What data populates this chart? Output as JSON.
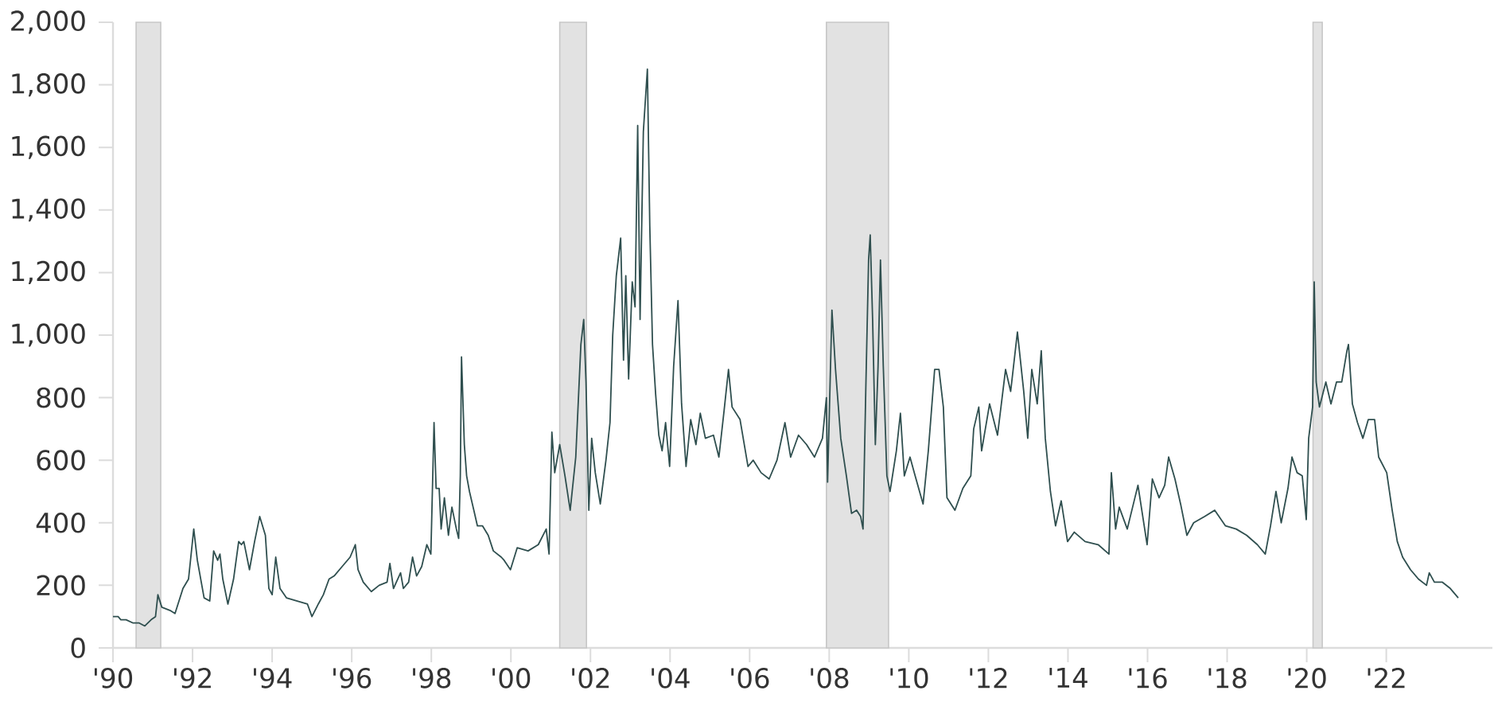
{
  "chart_data": {
    "type": "line",
    "color": "#2f4f4f",
    "marker": "none",
    "line_style": "solid",
    "xlim": [
      "1990-01-01",
      "2024-09-01"
    ],
    "xticks": [
      {
        "value": "1990-01-01",
        "label": "'90"
      },
      {
        "value": "1992-01-01",
        "label": "'92"
      },
      {
        "value": "1994-01-01",
        "label": "'94"
      },
      {
        "value": "1996-01-01",
        "label": "'96"
      },
      {
        "value": "1998-01-01",
        "label": "'98"
      },
      {
        "value": "2000-01-01",
        "label": "'00"
      },
      {
        "value": "2002-01-01",
        "label": "'02"
      },
      {
        "value": "2004-01-01",
        "label": "'04"
      },
      {
        "value": "2006-01-01",
        "label": "'06"
      },
      {
        "value": "2008-01-01",
        "label": "'08"
      },
      {
        "value": "2010-01-01",
        "label": "'10"
      },
      {
        "value": "2012-01-01",
        "label": "'12"
      },
      {
        "value": "2014-01-01",
        "label": "'14"
      },
      {
        "value": "2016-01-01",
        "label": "'16"
      },
      {
        "value": "2018-01-01",
        "label": "'18"
      },
      {
        "value": "2020-01-01",
        "label": "'20"
      },
      {
        "value": "2022-01-01",
        "label": "'22"
      }
    ],
    "ylim": [
      0,
      2000
    ],
    "yticks": [
      0,
      200,
      400,
      600,
      800,
      {
        "value": 1000,
        "label": "1,000"
      },
      {
        "value": 1200,
        "label": "1,200"
      },
      {
        "value": 1400,
        "label": "1,400"
      },
      {
        "value": 1600,
        "label": "1,600"
      },
      {
        "value": 1800,
        "label": "1,800"
      },
      {
        "value": 2000,
        "label": "2,000"
      }
    ],
    "bands": [
      {
        "axis": "x",
        "from": "1990-08-01",
        "to": "1991-03-15",
        "color": "#e2e2e2"
      },
      {
        "axis": "x",
        "from": "2001-03-25",
        "to": "2001-11-25",
        "color": "#e2e2e2"
      },
      {
        "axis": "x",
        "from": "2007-12-06",
        "to": "2009-06-29",
        "color": "#e2e2e2"
      },
      {
        "axis": "x",
        "from": "2020-02-28",
        "to": "2020-05-23",
        "color": "#e2e2e2"
      }
    ],
    "x": [
      "1990-01-01",
      "1990-02-17",
      "1990-03-14",
      "1990-05-01",
      "1990-07-01",
      "1990-08-26",
      "1990-10-20",
      "1990-12-17",
      "1991-01-26",
      "1991-02-17",
      "1991-03-25",
      "1991-06-07",
      "1991-07-24",
      "1991-10-05",
      "1991-11-25",
      "1992-01-12",
      "1992-02-14",
      "1992-04-16",
      "1992-06-07",
      "1992-07-13",
      "1992-08-19",
      "1992-09-09",
      "1992-10-05",
      "1992-11-21",
      "1993-01-12",
      "1993-02-28",
      "1993-03-25",
      "1993-04-16",
      "1993-06-07",
      "1993-07-24",
      "1993-09-09",
      "1993-10-31",
      "1993-12-02",
      "1994-01-01",
      "1994-02-03",
      "1994-03-14",
      "1994-05-12",
      "1994-08-19",
      "1994-11-21",
      "1995-01-01",
      "1995-02-28",
      "1995-04-16",
      "1995-06-07",
      "1995-07-24",
      "1995-10-05",
      "1995-12-17",
      "1996-02-03",
      "1996-02-28",
      "1996-04-16",
      "1996-06-29",
      "1996-09-09",
      "1996-11-21",
      "1996-12-17",
      "1997-01-19",
      "1997-03-25",
      "1997-04-20",
      "1997-06-07",
      "1997-07-13",
      "1997-08-19",
      "1997-10-05",
      "1997-11-21",
      "1997-12-28",
      "1998-01-26",
      "1998-02-14",
      "1998-03-14",
      "1998-04-01",
      "1998-05-01",
      "1998-06-07",
      "1998-07-09",
      "1998-08-19",
      "1998-09-09",
      "1998-09-24",
      "1998-10-05",
      "1998-10-31",
      "1998-11-21",
      "1998-12-17",
      "1999-01-26",
      "1999-02-28",
      "1999-04-16",
      "1999-06-07",
      "1999-07-24",
      "1999-10-05",
      "1999-10-31",
      "1999-12-28",
      "2000-02-28",
      "2000-06-07",
      "2000-09-09",
      "2000-11-21",
      "2000-12-17",
      "2001-01-12",
      "2001-02-07",
      "2001-03-25",
      "2001-05-12",
      "2001-06-29",
      "2001-08-19",
      "2001-10-05",
      "2001-10-31",
      "2001-11-21",
      "2001-12-17",
      "2002-01-12",
      "2002-02-14",
      "2002-04-01",
      "2002-05-23",
      "2002-06-29",
      "2002-07-24",
      "2002-08-26",
      "2002-10-05",
      "2002-10-31",
      "2002-11-21",
      "2002-12-17",
      "2003-01-19",
      "2003-02-14",
      "2003-03-10",
      "2003-04-01",
      "2003-05-01",
      "2003-06-07",
      "2003-06-29",
      "2003-07-24",
      "2003-08-22",
      "2003-09-20",
      "2003-10-20",
      "2003-11-21",
      "2003-12-28",
      "2004-02-03",
      "2004-03-14",
      "2004-04-16",
      "2004-05-27",
      "2004-07-09",
      "2004-08-26",
      "2004-10-05",
      "2004-11-21",
      "2005-02-03",
      "2005-03-25",
      "2005-05-12",
      "2005-06-21",
      "2005-07-24",
      "2005-10-05",
      "2005-12-17",
      "2006-02-03",
      "2006-04-16",
      "2006-06-29",
      "2006-09-09",
      "2006-11-21",
      "2007-01-12",
      "2007-03-25",
      "2007-06-07",
      "2007-08-19",
      "2007-10-31",
      "2007-12-06",
      "2007-12-17",
      "2008-01-26",
      "2008-02-28",
      "2008-04-16",
      "2008-06-07",
      "2008-07-24",
      "2008-09-09",
      "2008-10-16",
      "2008-11-07",
      "2008-12-02",
      "2008-12-28",
      "2009-01-12",
      "2009-02-03",
      "2009-02-28",
      "2009-03-25",
      "2009-04-16",
      "2009-05-12",
      "2009-06-14",
      "2009-07-13",
      "2009-09-09",
      "2009-10-16",
      "2009-11-21",
      "2010-01-12",
      "2010-02-28",
      "2010-05-12",
      "2010-06-29",
      "2010-08-26",
      "2010-10-05",
      "2010-11-14",
      "2010-12-17",
      "2011-02-28",
      "2011-05-12",
      "2011-07-24",
      "2011-08-19",
      "2011-10-05",
      "2011-10-31",
      "2012-01-12",
      "2012-03-25",
      "2012-06-07",
      "2012-07-24",
      "2012-09-24",
      "2012-11-21",
      "2012-12-28",
      "2013-02-03",
      "2013-03-25",
      "2013-05-01",
      "2013-06-07",
      "2013-07-24",
      "2013-09-09",
      "2013-10-31",
      "2013-12-28",
      "2014-02-28",
      "2014-06-07",
      "2014-10-05",
      "2015-01-12",
      "2015-02-03",
      "2015-03-14",
      "2015-04-16",
      "2015-06-29",
      "2015-10-05",
      "2015-12-28",
      "2016-02-14",
      "2016-04-16",
      "2016-06-07",
      "2016-07-13",
      "2016-09-09",
      "2016-10-31",
      "2016-12-28",
      "2017-02-28",
      "2017-06-07",
      "2017-09-09",
      "2017-12-17",
      "2018-03-25",
      "2018-06-29",
      "2018-10-05",
      "2018-12-17",
      "2019-02-03",
      "2019-03-25",
      "2019-05-12",
      "2019-07-13",
      "2019-08-19",
      "2019-10-05",
      "2019-11-21",
      "2019-12-28",
      "2020-01-19",
      "2020-02-24",
      "2020-03-10",
      "2020-03-28",
      "2020-04-27",
      "2020-06-25",
      "2020-08-11",
      "2020-10-01",
      "2020-11-18",
      "2021-01-05",
      "2021-01-19",
      "2021-02-24",
      "2021-04-12",
      "2021-05-31",
      "2021-07-20",
      "2021-09-16",
      "2021-10-23",
      "2022-01-05",
      "2022-02-24",
      "2022-04-12",
      "2022-05-31",
      "2022-08-11",
      "2022-10-23",
      "2023-01-05",
      "2023-01-30",
      "2023-03-18",
      "2023-05-31",
      "2023-08-11",
      "2023-10-23"
    ],
    "values": [
      100,
      100,
      90,
      90,
      80,
      80,
      70,
      90,
      100,
      170,
      130,
      120,
      110,
      190,
      220,
      380,
      280,
      160,
      150,
      310,
      280,
      300,
      220,
      140,
      220,
      340,
      330,
      340,
      250,
      340,
      420,
      360,
      190,
      170,
      290,
      190,
      160,
      150,
      140,
      100,
      140,
      170,
      220,
      230,
      260,
      290,
      330,
      250,
      210,
      180,
      200,
      210,
      270,
      190,
      240,
      190,
      210,
      290,
      230,
      260,
      330,
      300,
      720,
      510,
      510,
      380,
      480,
      360,
      450,
      380,
      350,
      550,
      930,
      650,
      550,
      500,
      440,
      390,
      390,
      360,
      310,
      290,
      280,
      250,
      320,
      310,
      330,
      380,
      300,
      690,
      560,
      650,
      550,
      440,
      610,
      970,
      1050,
      850,
      440,
      670,
      560,
      460,
      600,
      720,
      1000,
      1190,
      1310,
      920,
      1190,
      860,
      1170,
      1090,
      1670,
      1050,
      1650,
      1850,
      1350,
      970,
      810,
      680,
      630,
      720,
      580,
      900,
      1110,
      780,
      580,
      730,
      650,
      750,
      670,
      680,
      610,
      760,
      890,
      770,
      730,
      580,
      600,
      560,
      540,
      600,
      720,
      610,
      680,
      650,
      610,
      670,
      800,
      530,
      1080,
      890,
      670,
      550,
      430,
      440,
      420,
      380,
      820,
      1240,
      1320,
      1050,
      650,
      900,
      1240,
      900,
      550,
      500,
      630,
      750,
      550,
      610,
      550,
      460,
      630,
      890,
      890,
      770,
      480,
      440,
      510,
      550,
      700,
      770,
      630,
      780,
      680,
      890,
      820,
      1010,
      820,
      670,
      890,
      780,
      950,
      670,
      500,
      390,
      470,
      340,
      370,
      340,
      330,
      300,
      560,
      380,
      450,
      380,
      520,
      330,
      540,
      480,
      520,
      610,
      540,
      460,
      360,
      400,
      420,
      440,
      390,
      380,
      360,
      330,
      300,
      390,
      500,
      400,
      510,
      610,
      560,
      550,
      410,
      670,
      770,
      1170,
      850,
      770,
      850,
      780,
      850,
      850,
      950,
      970,
      780,
      720,
      670,
      730,
      730,
      610,
      560,
      440,
      340,
      290,
      250,
      220,
      200,
      240,
      210,
      210,
      190,
      160
    ]
  }
}
